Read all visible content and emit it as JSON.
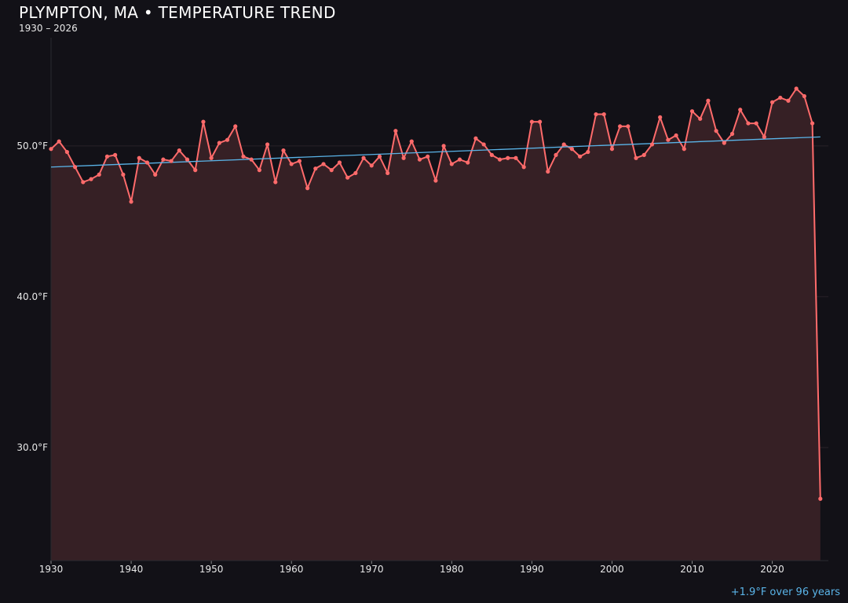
{
  "chart_data": {
    "type": "line",
    "title": "PLYMPTON, MA • TEMPERATURE TREND",
    "subtitle": "1930 – 2026",
    "annotation": "+1.9°F over 96 years",
    "xlabel": "",
    "ylabel": "",
    "xlim": [
      1930,
      2027
    ],
    "ylim": [
      22.5,
      57.7
    ],
    "grid": true,
    "x_ticks": [
      "1930",
      "1940",
      "1950",
      "1960",
      "1970",
      "1980",
      "1990",
      "2000",
      "2010",
      "2020"
    ],
    "y_ticks": [
      "30.0°F",
      "40.0°F",
      "50.0°F"
    ],
    "colors": {
      "series": "#ff6b6b",
      "fill": "#362025",
      "trend": "#5ab4e8",
      "background": "#121117"
    },
    "x": [
      1930,
      1931,
      1932,
      1933,
      1934,
      1935,
      1936,
      1937,
      1938,
      1939,
      1940,
      1941,
      1942,
      1943,
      1944,
      1945,
      1946,
      1947,
      1948,
      1949,
      1950,
      1951,
      1952,
      1953,
      1954,
      1955,
      1956,
      1957,
      1958,
      1959,
      1960,
      1961,
      1962,
      1963,
      1964,
      1965,
      1966,
      1967,
      1968,
      1969,
      1970,
      1971,
      1972,
      1973,
      1974,
      1975,
      1976,
      1977,
      1978,
      1979,
      1980,
      1981,
      1982,
      1983,
      1984,
      1985,
      1986,
      1987,
      1988,
      1989,
      1990,
      1991,
      1992,
      1993,
      1994,
      1995,
      1996,
      1997,
      1998,
      1999,
      2000,
      2001,
      2002,
      2003,
      2004,
      2005,
      2006,
      2007,
      2008,
      2009,
      2010,
      2011,
      2012,
      2013,
      2014,
      2015,
      2016,
      2017,
      2018,
      2019,
      2020,
      2021,
      2022,
      2023,
      2024,
      2025,
      2026
    ],
    "series": [
      {
        "values": [
          49.8,
          50.3,
          49.6,
          48.6,
          47.6,
          47.8,
          48.1,
          49.3,
          49.4,
          48.1,
          46.3,
          49.2,
          48.9,
          48.1,
          49.1,
          49.0,
          49.7,
          49.1,
          48.4,
          51.6,
          49.2,
          50.2,
          50.4,
          51.3,
          49.3,
          49.1,
          48.4,
          50.1,
          47.6,
          49.7,
          48.8,
          49.0,
          47.2,
          48.5,
          48.8,
          48.4,
          48.9,
          47.9,
          48.2,
          49.2,
          48.7,
          49.3,
          48.2,
          51.0,
          49.2,
          50.3,
          49.1,
          49.3,
          47.7,
          50.0,
          48.8,
          49.1,
          48.9,
          50.5,
          50.1,
          49.4,
          49.1,
          49.2,
          49.2,
          48.6,
          51.6,
          51.6,
          48.3,
          49.4,
          50.1,
          49.8,
          49.3,
          49.6,
          52.1,
          52.1,
          49.8,
          51.3,
          51.3,
          49.2,
          49.4,
          50.1,
          51.9,
          50.4,
          50.7,
          49.8,
          52.3,
          51.8,
          53.0,
          51.0,
          50.2,
          50.8,
          52.4,
          51.5,
          51.5,
          50.6,
          52.9,
          53.2,
          53.0,
          53.8,
          53.3,
          51.5,
          26.6
        ]
      }
    ],
    "trend": {
      "x": [
        1930,
        2026
      ],
      "y": [
        48.6,
        50.6
      ]
    }
  }
}
